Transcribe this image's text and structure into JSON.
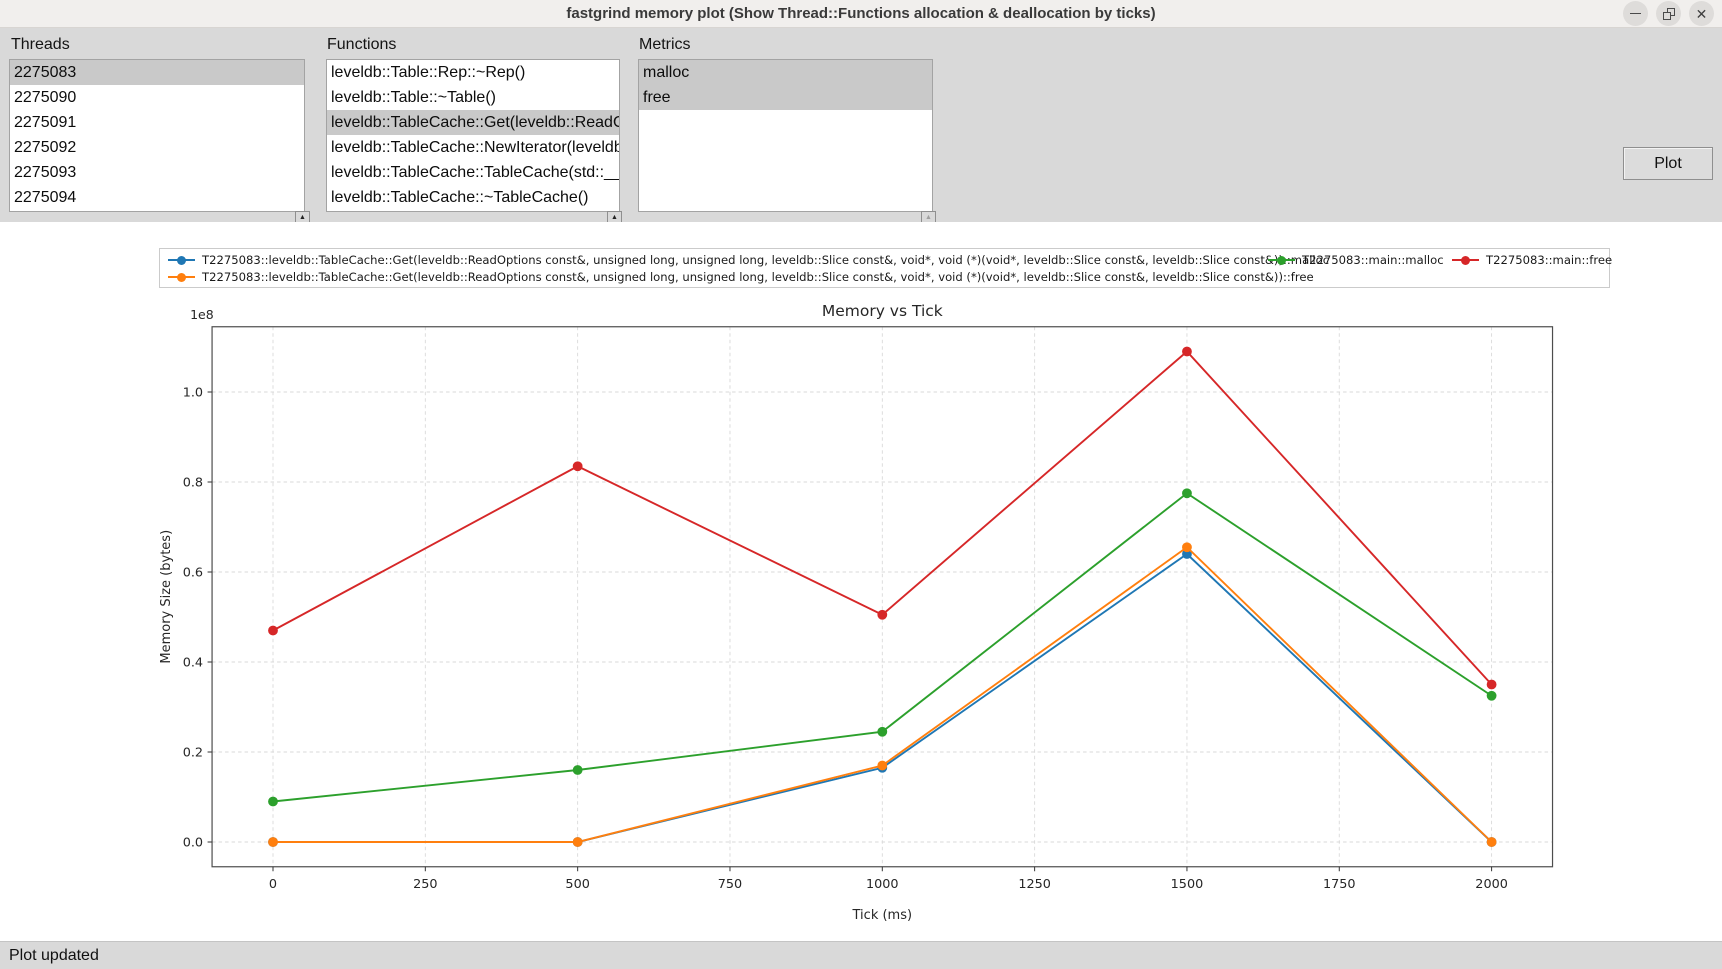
{
  "window": {
    "title": "fastgrind memory plot (Show Thread::Functions allocation & deallocation by ticks)"
  },
  "panels": {
    "threads": {
      "label": "Threads",
      "items": [
        "2275083",
        "2275090",
        "2275091",
        "2275092",
        "2275093",
        "2275094"
      ],
      "selected": [
        0
      ]
    },
    "functions": {
      "label": "Functions",
      "items": [
        "leveldb::Table::Rep::~Rep()",
        "leveldb::Table::~Table()",
        "leveldb::TableCache::Get(leveldb::ReadOptions const&, unsigned long, unsigned long, leveldb::Slice const&, void*, void (*)(void*, leveldb::Slice const&, leveldb::Slice const&))",
        "leveldb::TableCache::NewIterator(leveldb",
        "leveldb::TableCache::TableCache(std::__",
        "leveldb::TableCache::~TableCache()"
      ],
      "selected": [
        2
      ]
    },
    "metrics": {
      "label": "Metrics",
      "items": [
        "malloc",
        "free"
      ],
      "selected": [
        0,
        1
      ]
    }
  },
  "plot_button_label": "Plot",
  "status_bar": {
    "text": "Plot updated"
  },
  "chart_data": {
    "type": "line",
    "title": "Memory vs Tick",
    "xlabel": "Tick (ms)",
    "ylabel": "Memory Size (bytes)",
    "offset_label": "1e8",
    "x": [
      0,
      500,
      1000,
      1500,
      2000
    ],
    "xticks": [
      0,
      250,
      500,
      750,
      1000,
      1250,
      1500,
      1750,
      2000
    ],
    "yticks_1e8": [
      "0.0",
      "0.2",
      "0.4",
      "0.6",
      "0.8",
      "1.0"
    ],
    "xlim": [
      -100,
      2100
    ],
    "ylim": [
      -5500000,
      114500000
    ],
    "grid": true,
    "legend_position": "top-outside",
    "series": [
      {
        "name": "T2275083::leveldb::TableCache::Get(leveldb::ReadOptions const&, unsigned long, unsigned long, leveldb::Slice const&, void*, void (*)(void*, leveldb::Slice const&, leveldb::Slice const&))::malloc",
        "color": "#1f77b4",
        "values": [
          0,
          0,
          16500000,
          64000000,
          0
        ]
      },
      {
        "name": "T2275083::leveldb::TableCache::Get(leveldb::ReadOptions const&, unsigned long, unsigned long, leveldb::Slice const&, void*, void (*)(void*, leveldb::Slice const&, leveldb::Slice const&))::free",
        "color": "#ff7f0e",
        "values": [
          0,
          0,
          17000000,
          65500000,
          0
        ]
      },
      {
        "name": "T2275083::main::malloc",
        "color": "#2ca02c",
        "values": [
          9000000,
          16000000,
          24500000,
          77500000,
          32500000
        ]
      },
      {
        "name": "T2275083::main::free",
        "color": "#d62728",
        "values": [
          47000000,
          83500000,
          50500000,
          109000000,
          35000000
        ]
      }
    ]
  }
}
